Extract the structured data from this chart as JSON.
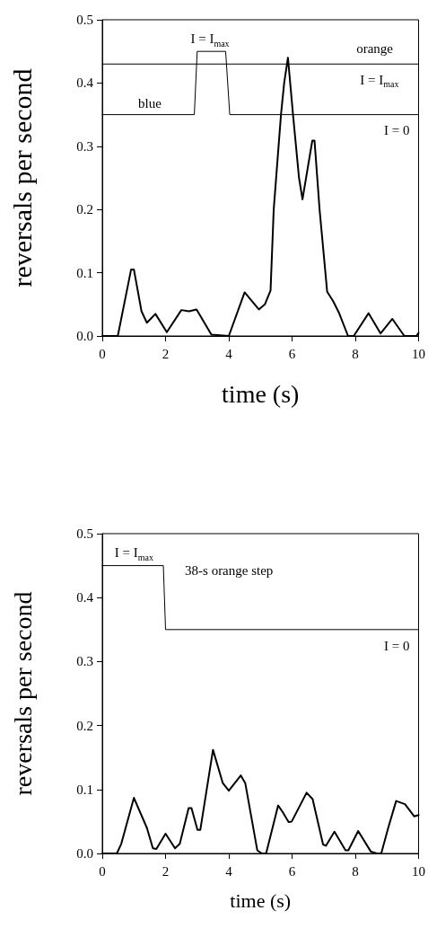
{
  "chart_data": [
    {
      "type": "line",
      "xlabel": "time (s)",
      "ylabel": "reversals per second",
      "xlim": [
        0,
        10
      ],
      "xticks": [
        0,
        2,
        4,
        6,
        8,
        10
      ],
      "ylim": [
        0,
        0.5
      ],
      "yticks": [
        {
          "value": 0,
          "label": "0.0"
        },
        {
          "value": 0.1,
          "label": "0.1"
        },
        {
          "value": 0.2,
          "label": "0.2"
        },
        {
          "value": 0.3,
          "label": "0.3"
        },
        {
          "value": 0.4,
          "label": "0.4"
        },
        {
          "value": 0.5,
          "label": "0.5"
        }
      ],
      "grid": false,
      "marker": "none",
      "line_style": "solid",
      "series": [
        {
          "color": "#000000",
          "x": [
            0,
            0.49,
            0.91,
            1.0,
            1.24,
            1.41,
            1.68,
            2.04,
            2.5,
            2.74,
            2.98,
            3.45,
            4.0,
            4.5,
            4.95,
            5.14,
            5.32,
            5.42,
            5.65,
            5.75,
            5.87,
            6.03,
            6.22,
            6.33,
            6.64,
            6.71,
            6.87,
            7.11,
            7.3,
            7.48,
            7.77,
            7.95,
            8.42,
            8.8,
            9.17,
            9.55,
            9.93,
            10
          ],
          "values": [
            0,
            0,
            0.105,
            0.105,
            0.039,
            0.021,
            0.035,
            0.006,
            0.041,
            0.039,
            0.042,
            0.002,
            0,
            0.069,
            0.042,
            0.05,
            0.072,
            0.2,
            0.35,
            0.4,
            0.44,
            0.35,
            0.25,
            0.216,
            0.309,
            0.309,
            0.2,
            0.07,
            0.055,
            0.037,
            0,
            0,
            0.036,
            0.004,
            0.027,
            0,
            0,
            0.005
          ]
        },
        {
          "color": "#000000",
          "x": [
            0,
            2.91,
            3.0,
            3.9,
            4.03,
            10
          ],
          "values": [
            0.35,
            0.35,
            0.45,
            0.45,
            0.35,
            0.35
          ]
        },
        {
          "color": "#000000",
          "x": [
            0,
            10
          ],
          "values": [
            0.43,
            0.43
          ]
        }
      ],
      "annotations": [
        "blue",
        "I = I$_{max}$",
        "orange",
        "I = I$_{max}$",
        "I = 0"
      ]
    },
    {
      "type": "line",
      "xlabel": "time (s)",
      "ylabel": "reversals per second",
      "xlim": [
        0,
        10
      ],
      "xticks": [
        0,
        2,
        4,
        6,
        8,
        10
      ],
      "ylim": [
        0,
        0.5
      ],
      "yticks": [
        {
          "value": 0,
          "label": "0.0"
        },
        {
          "value": 0.1,
          "label": "0.1"
        },
        {
          "value": 0.2,
          "label": "0.2"
        },
        {
          "value": 0.3,
          "label": "0.3"
        },
        {
          "value": 0.4,
          "label": "0.4"
        },
        {
          "value": 0.5,
          "label": "0.5"
        }
      ],
      "grid": false,
      "marker": "none",
      "line_style": "solid",
      "series": [
        {
          "color": "#000000",
          "x": [
            0,
            0.46,
            0.6,
            1.0,
            1.41,
            1.6,
            1.71,
            2.0,
            2.3,
            2.45,
            2.73,
            2.82,
            3.01,
            3.1,
            3.5,
            3.81,
            4.0,
            4.38,
            4.52,
            4.9,
            5.04,
            5.18,
            5.56,
            5.7,
            5.89,
            5.99,
            6.46,
            6.65,
            6.98,
            7.07,
            7.34,
            7.69,
            7.78,
            8.09,
            8.49,
            8.68,
            8.82,
            9.04,
            9.29,
            9.57,
            9.86,
            10
          ],
          "values": [
            0,
            0,
            0.015,
            0.087,
            0.04,
            0.008,
            0.007,
            0.031,
            0.008,
            0.015,
            0.071,
            0.071,
            0.037,
            0.037,
            0.162,
            0.11,
            0.098,
            0.122,
            0.11,
            0.005,
            0,
            0,
            0.075,
            0.065,
            0.049,
            0.05,
            0.095,
            0.085,
            0.014,
            0.012,
            0.034,
            0.005,
            0.005,
            0.035,
            0.003,
            0,
            0,
            0.04,
            0.082,
            0.077,
            0.058,
            0.06
          ]
        },
        {
          "color": "#000000",
          "x": [
            0,
            1.93,
            2.0,
            10
          ],
          "values": [
            0.45,
            0.45,
            0.35,
            0.35
          ]
        }
      ],
      "annotations": [
        "I = I$_{max}$",
        "38-s orange step",
        "I = 0"
      ]
    }
  ]
}
